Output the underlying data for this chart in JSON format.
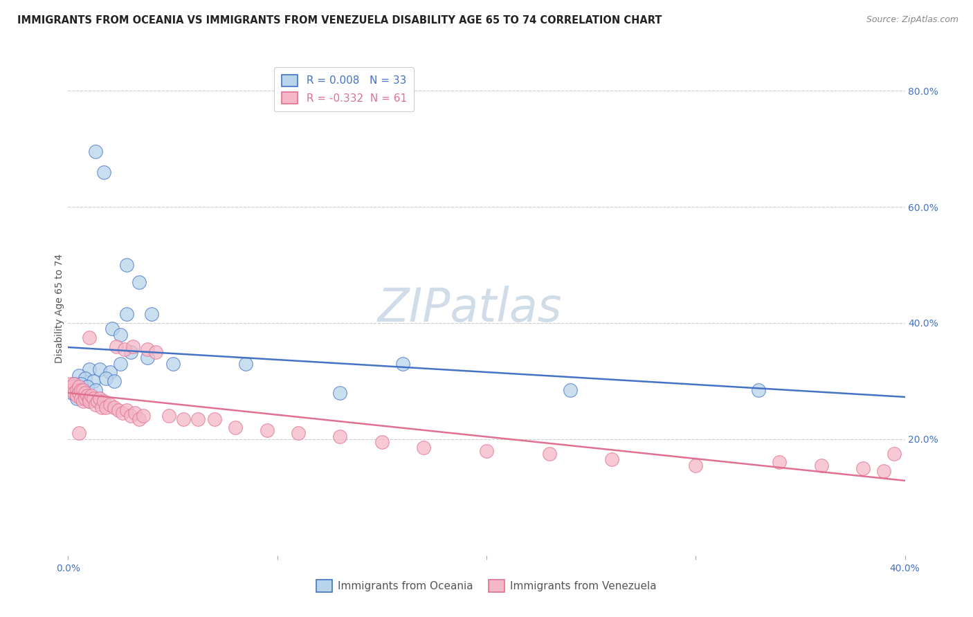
{
  "title": "IMMIGRANTS FROM OCEANIA VS IMMIGRANTS FROM VENEZUELA DISABILITY AGE 65 TO 74 CORRELATION CHART",
  "source": "Source: ZipAtlas.com",
  "ylabel": "Disability Age 65 to 74",
  "legend_oceania": "Immigrants from Oceania",
  "legend_venezuela": "Immigrants from Venezuela",
  "R_oceania": 0.008,
  "N_oceania": 33,
  "R_venezuela": -0.332,
  "N_venezuela": 61,
  "color_oceania": "#b8d4ea",
  "color_venezuela": "#f4b8c8",
  "line_color_oceania": "#4472c4",
  "line_color_venezuela": "#e07090",
  "xmin": 0.0,
  "xmax": 0.4,
  "ymin": 0.0,
  "ymax": 0.85,
  "right_yticks": [
    0.2,
    0.4,
    0.6,
    0.8
  ],
  "right_yticklabels": [
    "20.0%",
    "40.0%",
    "60.0%",
    "80.0%"
  ],
  "xticklabels": [
    "0.0%",
    "",
    "",
    "",
    "40.0%"
  ],
  "xticks": [
    0.0,
    0.1,
    0.2,
    0.3,
    0.4
  ],
  "background_color": "#ffffff",
  "grid_color": "#cccccc",
  "title_fontsize": 10.5,
  "axis_label_fontsize": 10,
  "tick_fontsize": 10,
  "oceania_x": [
    0.013,
    0.017,
    0.028,
    0.034,
    0.028,
    0.04,
    0.021,
    0.025,
    0.03,
    0.038,
    0.01,
    0.015,
    0.02,
    0.025,
    0.005,
    0.008,
    0.012,
    0.018,
    0.022,
    0.003,
    0.006,
    0.009,
    0.013,
    0.002,
    0.004,
    0.007,
    0.01,
    0.13,
    0.24,
    0.33,
    0.05,
    0.085,
    0.16
  ],
  "oceania_y": [
    0.695,
    0.66,
    0.5,
    0.47,
    0.415,
    0.415,
    0.39,
    0.38,
    0.35,
    0.34,
    0.32,
    0.32,
    0.315,
    0.33,
    0.31,
    0.305,
    0.3,
    0.305,
    0.3,
    0.295,
    0.295,
    0.29,
    0.285,
    0.28,
    0.27,
    0.27,
    0.265,
    0.28,
    0.285,
    0.285,
    0.33,
    0.33,
    0.33
  ],
  "venezuela_x": [
    0.001,
    0.002,
    0.002,
    0.003,
    0.003,
    0.004,
    0.004,
    0.005,
    0.005,
    0.006,
    0.006,
    0.007,
    0.007,
    0.008,
    0.008,
    0.009,
    0.01,
    0.01,
    0.011,
    0.012,
    0.013,
    0.014,
    0.015,
    0.016,
    0.017,
    0.018,
    0.02,
    0.022,
    0.024,
    0.026,
    0.028,
    0.03,
    0.032,
    0.034,
    0.036,
    0.023,
    0.027,
    0.031,
    0.038,
    0.042,
    0.048,
    0.055,
    0.062,
    0.07,
    0.08,
    0.095,
    0.11,
    0.13,
    0.15,
    0.17,
    0.2,
    0.23,
    0.26,
    0.3,
    0.34,
    0.36,
    0.38,
    0.39,
    0.005,
    0.395,
    0.01
  ],
  "venezuela_y": [
    0.295,
    0.29,
    0.285,
    0.295,
    0.28,
    0.285,
    0.275,
    0.29,
    0.28,
    0.285,
    0.27,
    0.285,
    0.265,
    0.28,
    0.27,
    0.275,
    0.27,
    0.265,
    0.275,
    0.27,
    0.26,
    0.265,
    0.27,
    0.255,
    0.265,
    0.255,
    0.26,
    0.255,
    0.25,
    0.245,
    0.25,
    0.24,
    0.245,
    0.235,
    0.24,
    0.36,
    0.355,
    0.36,
    0.355,
    0.35,
    0.24,
    0.235,
    0.235,
    0.235,
    0.22,
    0.215,
    0.21,
    0.205,
    0.195,
    0.185,
    0.18,
    0.175,
    0.165,
    0.155,
    0.16,
    0.155,
    0.15,
    0.145,
    0.21,
    0.175,
    0.375
  ],
  "watermark_text": "ZIPatlas",
  "watermark_color": "#d0dce8",
  "watermark_fontsize": 48
}
